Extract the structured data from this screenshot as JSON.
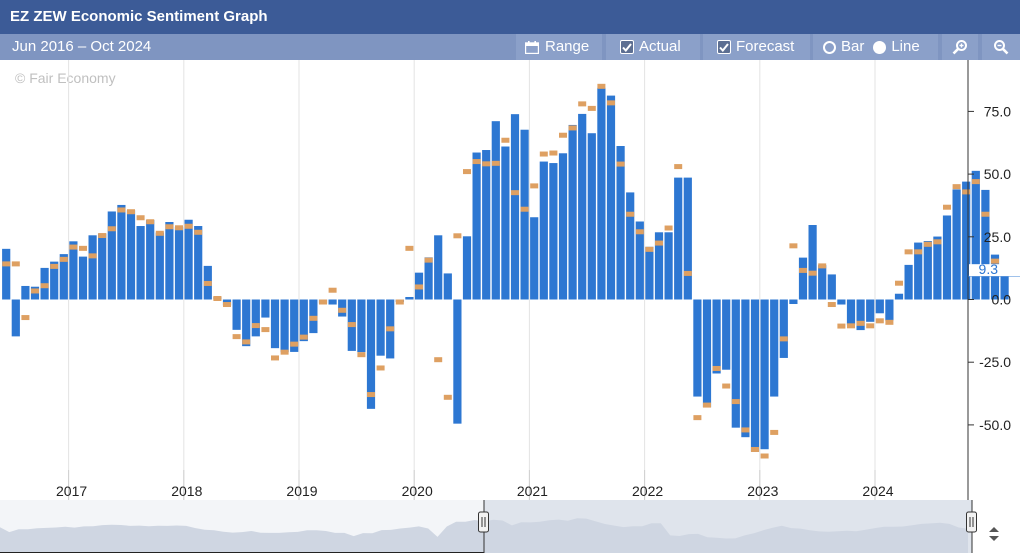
{
  "window": {
    "title": "EZ ZEW Economic Sentiment Graph"
  },
  "toolbar": {
    "date_range": "Jun 2016 – Oct 2024",
    "range_label": "Range",
    "actual_label": "Actual",
    "forecast_label": "Forecast",
    "bar_label": "Bar",
    "line_label": "Line",
    "actual_checked": true,
    "forecast_checked": true,
    "mode_selected": "line"
  },
  "watermark": "© Fair Economy",
  "colors": {
    "actual": "#2d77d2",
    "forecast": "#dea062",
    "title_bg": "#3c5b97",
    "toolbar_bg": "#7f95c1"
  },
  "chart_data": {
    "type": "bar",
    "start": "2016-06",
    "interval": "monthly",
    "ylim": [
      -63,
      95
    ],
    "y_ticks": [
      75,
      50,
      25,
      0,
      -25,
      -50
    ],
    "y_tick_labels": [
      "75.0",
      "50.0",
      "25.0",
      "0.0",
      "-25.0",
      "-50.0"
    ],
    "x_tick_labels": [
      "2017",
      "2018",
      "2019",
      "2020",
      "2021",
      "2022",
      "2023",
      "2024"
    ],
    "last_value_label": "9.3",
    "grid": "vertical",
    "series": [
      {
        "name": "Actual",
        "values": [
          20.2,
          -14.7,
          5.4,
          5.1,
          12.6,
          15.1,
          18.1,
          23.2,
          17.1,
          25.6,
          26.3,
          35.1,
          37.7,
          35.6,
          29.3,
          31.7,
          26.7,
          30.9,
          29.0,
          31.8,
          29.3,
          13.4,
          1.1,
          -2.4,
          -12.1,
          -18.6,
          -14.7,
          -7.2,
          -19.4,
          -21.0,
          -20.9,
          -16.6,
          -13.4,
          -1.6,
          -2.0,
          -6.8,
          -20.5,
          -21.0,
          -43.6,
          -22.4,
          -23.5,
          -1.0,
          1.0,
          10.7,
          16.8,
          25.6,
          10.4,
          -49.5,
          25.2,
          58.6,
          59.6,
          71.1,
          61.0,
          73.9,
          67.7,
          32.8,
          55.0,
          54.4,
          58.3,
          69.6,
          74.0,
          66.3,
          84.4,
          81.3,
          61.2,
          42.7,
          31.1,
          21.0,
          26.8,
          26.8,
          48.6,
          48.6,
          -38.7,
          -43.0,
          -29.5,
          -28.0,
          -51.1,
          -54.9,
          -60.7,
          -59.7,
          -38.7,
          -23.3,
          -1.8,
          16.7,
          29.7,
          13.7,
          10.0,
          -2.0,
          -10.2,
          -12.2,
          -8.9,
          -5.5,
          -8.4,
          2.3,
          13.8,
          22.7,
          23.3,
          25.1,
          33.5,
          43.9,
          47.0,
          51.3,
          43.7,
          17.9,
          9.3
        ]
      },
      {
        "name": "Forecast",
        "values": [
          14.2,
          14.2,
          -7.2,
          3.4,
          5.5,
          13.2,
          16.0,
          20.9,
          20.4,
          17.4,
          25.5,
          28.2,
          35.7,
          35.0,
          32.6,
          31.0,
          26.4,
          29.0,
          28.6,
          29.2,
          26.8,
          6.4,
          0.4,
          -2.0,
          -14.8,
          -16.9,
          -10.4,
          -12.0,
          -23.3,
          -21.0,
          -17.8,
          -15.0,
          -7.5,
          -1.0,
          3.7,
          -4.3,
          -10.0,
          -22.0,
          -37.9,
          -27.3,
          -11.7,
          -1.0,
          20.4,
          5.0,
          15.7,
          -24.0,
          -39.0,
          25.4,
          51.0,
          55.0,
          54.1,
          54.3,
          63.5,
          42.6,
          36.0,
          45.3,
          58.0,
          58.4,
          65.5,
          68.4,
          78.0,
          76.2,
          85.0,
          78.4,
          54.0,
          34.0,
          27.0,
          20.0,
          22.5,
          28.5,
          53.0,
          10.4,
          -47.1,
          -42.1,
          -27.5,
          -34.5,
          -40.7,
          -52.0,
          -59.8,
          -62.4,
          -53.0,
          -15.7,
          21.4,
          11.6,
          10.5,
          13.4,
          -2.0,
          -10.6,
          -10.5,
          -9.5,
          -10.5,
          -8.5,
          -9.1,
          6.5,
          19.0,
          19.0,
          22.0,
          23.0,
          36.8,
          45.0,
          42.9,
          47.0,
          34.0,
          15.3
        ]
      }
    ]
  }
}
